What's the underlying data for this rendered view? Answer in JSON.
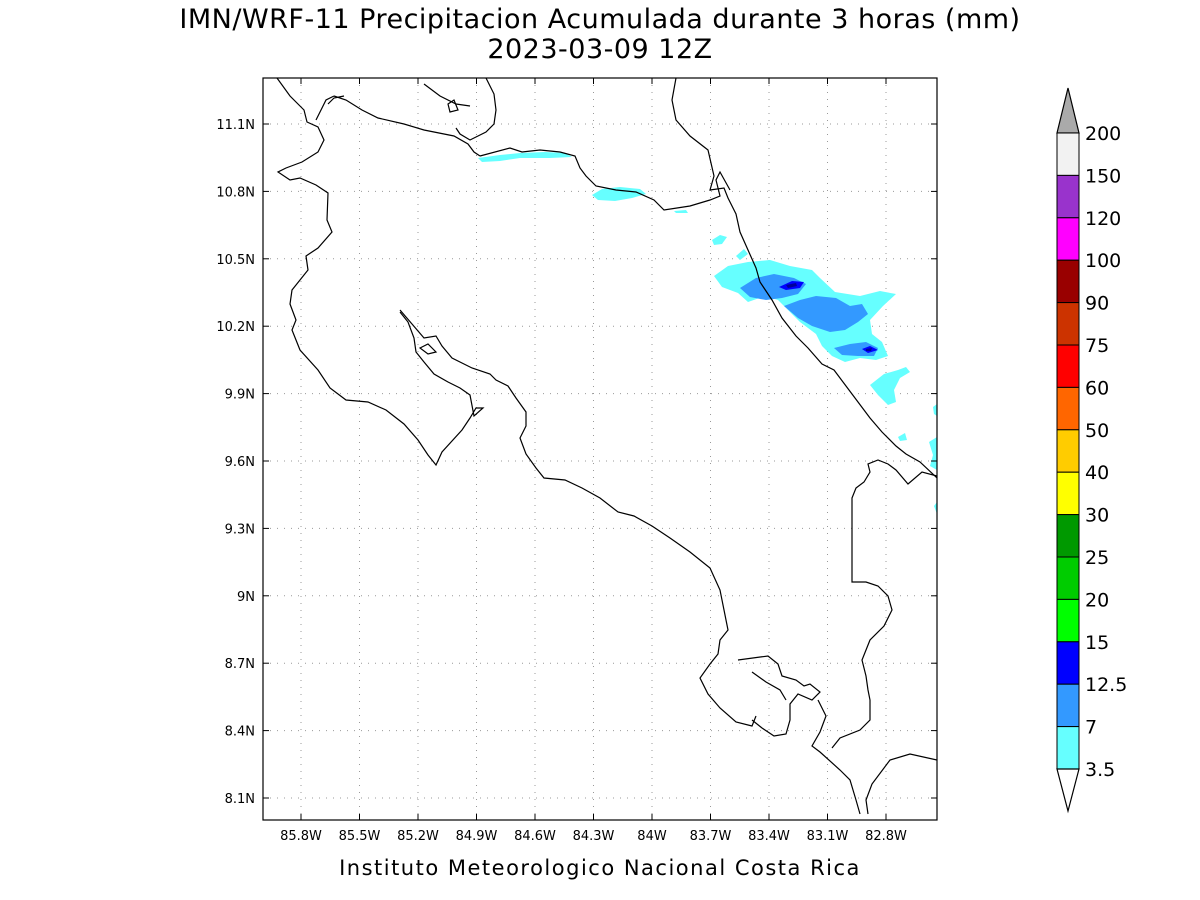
{
  "title": "IMN/WRF-11 Precipitacion Acumulada durante 3 horas (mm)",
  "subtitle": "2023-03-09 12Z",
  "footer": "Instituto Meteorologico Nacional Costa Rica",
  "map": {
    "lon_ticks": [
      "85.8W",
      "85.5W",
      "85.2W",
      "84.9W",
      "84.6W",
      "84.3W",
      "84W",
      "83.7W",
      "83.4W",
      "83.1W",
      "82.8W"
    ],
    "lat_ticks": [
      "11.1N",
      "10.8N",
      "10.5N",
      "10.2N",
      "9.9N",
      "9.6N",
      "9.3N",
      "9N",
      "8.7N",
      "8.4N",
      "8.1N"
    ]
  },
  "colorbar": {
    "labels": [
      "200",
      "150",
      "120",
      "100",
      "90",
      "75",
      "60",
      "50",
      "40",
      "30",
      "25",
      "20",
      "15",
      "12.5",
      "7",
      "3.5"
    ],
    "colors": [
      "#f2f2f2",
      "#9933cc",
      "#ff00ff",
      "#990000",
      "#cc3300",
      "#ff0000",
      "#ff6600",
      "#ffcc00",
      "#ffff00",
      "#009900",
      "#00cc00",
      "#00ff00",
      "#0000ff",
      "#3399ff",
      "#66ffff"
    ],
    "over_color": "#aaaaaa"
  }
}
